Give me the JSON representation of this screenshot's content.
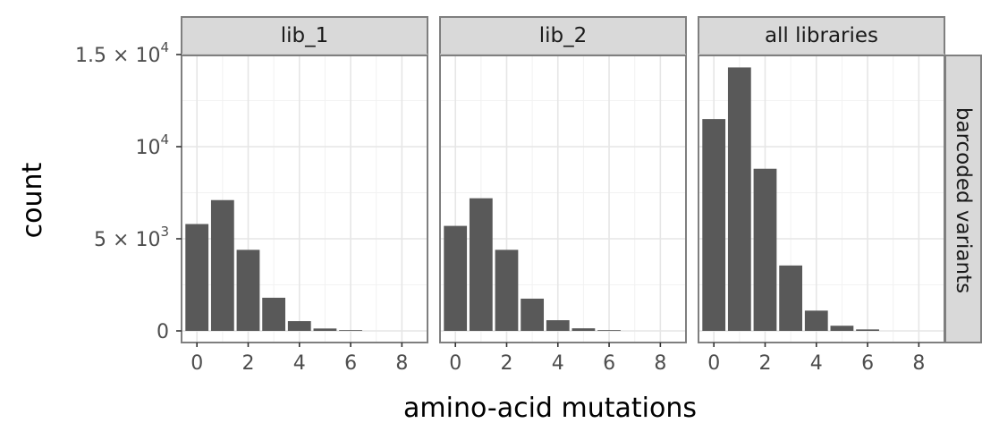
{
  "chart_data": {
    "type": "bar",
    "xlabel": "amino-acid mutations",
    "ylabel": "count",
    "row_strip": "barcoded variants",
    "xlim": [
      -0.6,
      9.0
    ],
    "ylim": [
      -500,
      15000
    ],
    "x_ticks": [
      "0",
      "2",
      "4",
      "6",
      "8"
    ],
    "y_ticks": [
      {
        "value": 0,
        "base": "0",
        "exp": ""
      },
      {
        "value": 5000,
        "base": "5 × 10",
        "exp": "3"
      },
      {
        "value": 10000,
        "base": "10",
        "exp": "4"
      },
      {
        "value": 15000,
        "base": "1.5 × 10",
        "exp": "4"
      }
    ],
    "grid": true,
    "panels": [
      {
        "name": "lib_1",
        "x": [
          0,
          1,
          2,
          3,
          4,
          5,
          6
        ],
        "values": [
          5800,
          7100,
          4400,
          1800,
          530,
          130,
          40
        ]
      },
      {
        "name": "lib_2",
        "x": [
          0,
          1,
          2,
          3,
          4,
          5,
          6
        ],
        "values": [
          5700,
          7200,
          4400,
          1750,
          580,
          140,
          40
        ]
      },
      {
        "name": "all libraries",
        "x": [
          0,
          1,
          2,
          3,
          4,
          5,
          6
        ],
        "values": [
          11500,
          14300,
          8800,
          3550,
          1100,
          280,
          80
        ]
      }
    ]
  }
}
